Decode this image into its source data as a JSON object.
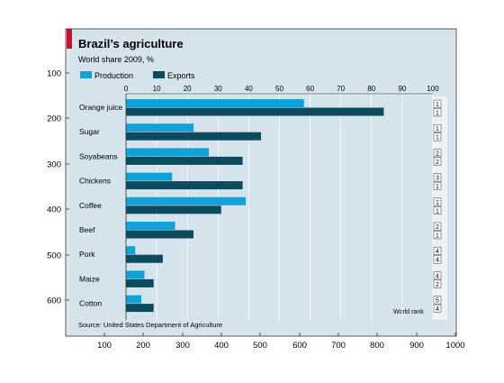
{
  "chart_data": {
    "type": "bar",
    "title": "Brazil’s agriculture",
    "subtitle": "World share 2009, %",
    "source": "Source: United States Department of Agriculture",
    "legend": [
      "Production",
      "Exports"
    ],
    "world_rank_label": "World rank",
    "xlim": [
      0,
      100
    ],
    "x_ticks": [
      "0",
      "10",
      "20",
      "30",
      "40",
      "50",
      "60",
      "70",
      "80",
      "90",
      "100"
    ],
    "categories": [
      "Orange juice",
      "Sugar",
      "Soyabeans",
      "Chickens",
      "Coffee",
      "Beef",
      "Pork",
      "Maize",
      "Cotton"
    ],
    "series": [
      {
        "name": "Production",
        "values": [
          58,
          22,
          27,
          15,
          39,
          16,
          3,
          6,
          5
        ]
      },
      {
        "name": "Exports",
        "values": [
          84,
          44,
          38,
          38,
          31,
          22,
          12,
          9,
          9
        ]
      }
    ],
    "world_rank": [
      [
        "1",
        "1"
      ],
      [
        "1",
        "1"
      ],
      [
        "2",
        "2"
      ],
      [
        "3",
        "1"
      ],
      [
        "1",
        "1"
      ],
      [
        "2",
        "1"
      ],
      [
        "4",
        "4"
      ],
      [
        "4",
        "2"
      ],
      [
        "5",
        "4"
      ]
    ],
    "outer_y_ticks": [
      "100",
      "200",
      "300",
      "400",
      "500",
      "600"
    ],
    "outer_x_ticks": [
      "100",
      "200",
      "300",
      "400",
      "500",
      "600",
      "700",
      "800",
      "900",
      "1000"
    ],
    "colors": {
      "production": "#0fa3d8",
      "exports": "#0c4a5e",
      "panel": "#d4e3ec",
      "accent": "#c8102e",
      "figure_bg": "#e6e6e6"
    }
  }
}
